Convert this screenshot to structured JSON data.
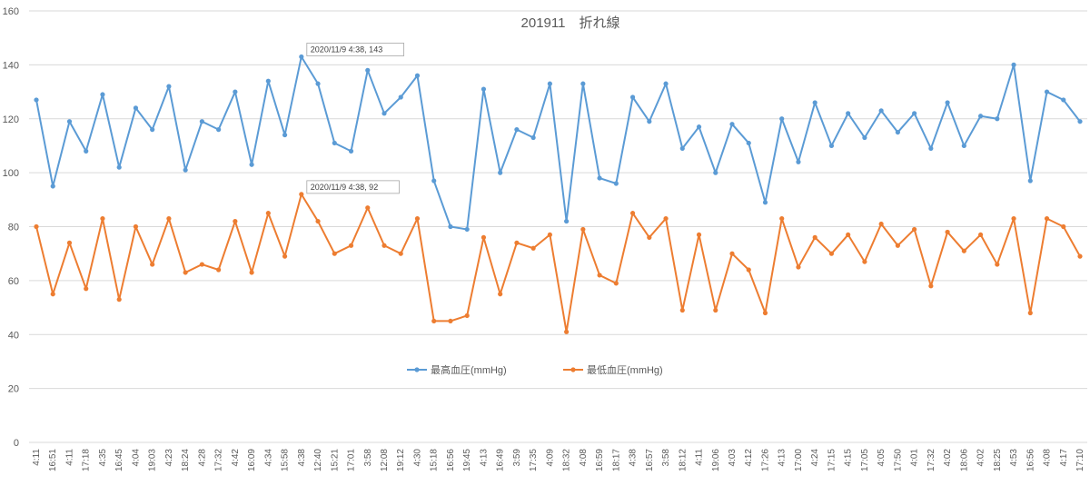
{
  "chart_data": {
    "type": "line",
    "title": "201911　折れ線",
    "ylim": [
      0,
      160
    ],
    "yticks": [
      0,
      20,
      40,
      60,
      80,
      100,
      120,
      140,
      160
    ],
    "grid": true,
    "legend_position": "inside-lower-middle",
    "categories": [
      "4:11",
      "16:51",
      "4:11",
      "17:18",
      "4:35",
      "16:45",
      "4:04",
      "19:03",
      "4:23",
      "18:24",
      "4:28",
      "17:32",
      "4:42",
      "16:09",
      "4:34",
      "15:58",
      "4:38",
      "12:40",
      "15:21",
      "17:01",
      "3:58",
      "12:08",
      "19:12",
      "4:30",
      "15:18",
      "16:56",
      "19:45",
      "4:13",
      "16:49",
      "3:59",
      "17:35",
      "4:09",
      "18:32",
      "4:08",
      "16:59",
      "18:17",
      "4:38",
      "16:57",
      "3:58",
      "18:12",
      "4:11",
      "19:06",
      "4:03",
      "4:12",
      "17:26",
      "4:13",
      "17:00",
      "4:24",
      "17:15",
      "4:15",
      "17:05",
      "4:05",
      "17:50",
      "4:01",
      "17:32",
      "4:02",
      "18:06",
      "4:02",
      "18:25",
      "4:53",
      "16:56",
      "4:08",
      "4:17",
      "17:10"
    ],
    "series": [
      {
        "name": "最高血圧(mmHg)",
        "color": "#5b9bd5",
        "values": [
          127,
          95,
          119,
          108,
          129,
          102,
          124,
          116,
          132,
          101,
          119,
          116,
          130,
          103,
          134,
          114,
          143,
          133,
          111,
          108,
          138,
          122,
          128,
          136,
          97,
          80,
          79,
          131,
          100,
          116,
          113,
          133,
          82,
          133,
          98,
          96,
          128,
          119,
          133,
          109,
          117,
          100,
          118,
          111,
          89,
          120,
          104,
          126,
          110,
          122,
          113,
          123,
          115,
          122,
          109,
          126,
          110,
          121,
          120,
          140,
          97,
          130,
          127,
          119
        ]
      },
      {
        "name": "最低血圧(mmHg)",
        "color": "#ed7d31",
        "values": [
          80,
          55,
          74,
          57,
          83,
          53,
          80,
          66,
          83,
          63,
          66,
          64,
          82,
          63,
          85,
          69,
          92,
          82,
          70,
          73,
          87,
          73,
          70,
          83,
          45,
          45,
          47,
          76,
          55,
          74,
          72,
          77,
          41,
          79,
          62,
          59,
          85,
          76,
          83,
          49,
          77,
          49,
          70,
          64,
          48,
          83,
          65,
          76,
          70,
          77,
          67,
          81,
          73,
          79,
          58,
          78,
          71,
          77,
          66,
          83,
          48,
          83,
          80,
          69
        ]
      }
    ],
    "annotations": [
      {
        "series": 0,
        "index": 16,
        "text": "2020/11/9 4:38, 143"
      },
      {
        "series": 1,
        "index": 16,
        "text": "2020/11/9 4:38, 92"
      }
    ]
  }
}
